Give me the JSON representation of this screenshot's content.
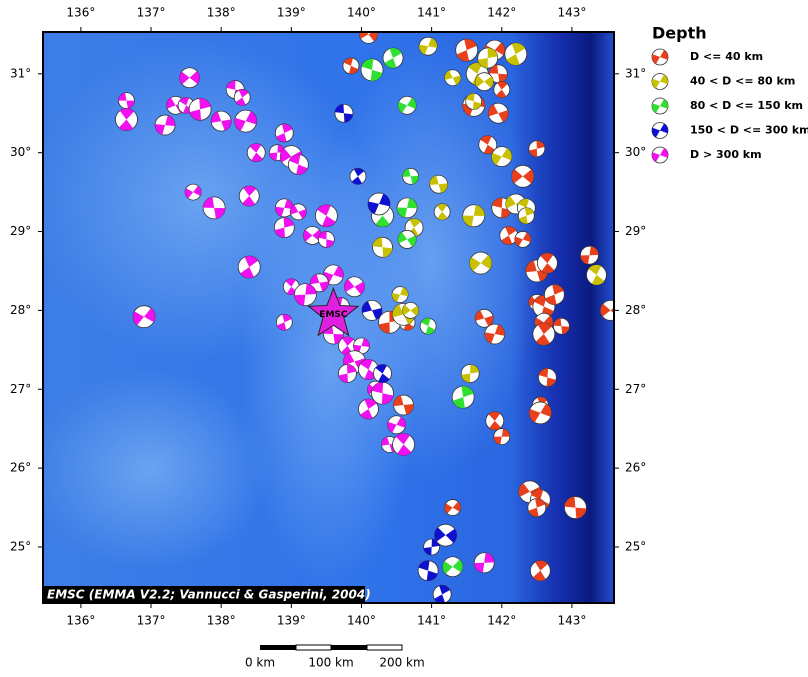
{
  "map": {
    "lonlim": [
      135.46,
      143.6
    ],
    "latlim": [
      24.29,
      31.53
    ],
    "lonticks": [
      {
        "value": 136,
        "label": "136°"
      },
      {
        "value": 137,
        "label": "137°"
      },
      {
        "value": 138,
        "label": "138°"
      },
      {
        "value": 139,
        "label": "139°"
      },
      {
        "value": 140,
        "label": "140°"
      },
      {
        "value": 141,
        "label": "141°"
      },
      {
        "value": 142,
        "label": "142°"
      },
      {
        "value": 143,
        "label": "143°"
      }
    ],
    "latticks": [
      {
        "value": 25,
        "label": "25°"
      },
      {
        "value": 26,
        "label": "26°"
      },
      {
        "value": 27,
        "label": "27°"
      },
      {
        "value": 28,
        "label": "28°"
      },
      {
        "value": 29,
        "label": "29°"
      },
      {
        "value": 30,
        "label": "30°"
      },
      {
        "value": 31,
        "label": "31°"
      }
    ],
    "credit": "EMSC (EMMA V2.2; Vannucci & Gasperini, 2004)",
    "epicenter": {
      "label": "EMSC",
      "lon": 139.6,
      "lat": 27.95
    },
    "scale": [
      "0 km",
      "100 km",
      "200 km"
    ],
    "legend": {
      "title": "Depth",
      "entries": [
        {
          "label": "D <= 40 km",
          "color": "#e8401c"
        },
        {
          "label": "40 < D <= 80 km",
          "color": "#c8c000"
        },
        {
          "label": "80 < D <= 150 km",
          "color": "#30e030"
        },
        {
          "label": "150 < D <= 300 km",
          "color": "#1010d0"
        },
        {
          "label": "D > 300 km",
          "color": "#f010f0"
        }
      ]
    },
    "events": [
      [
        136.65,
        30.66,
        4
      ],
      [
        136.65,
        30.42,
        4
      ],
      [
        137.2,
        30.35,
        4
      ],
      [
        137.35,
        30.6,
        4
      ],
      [
        137.5,
        30.6,
        4
      ],
      [
        137.7,
        30.55,
        4
      ],
      [
        137.55,
        30.95,
        4
      ],
      [
        138.2,
        30.8,
        4
      ],
      [
        138.3,
        30.7,
        4
      ],
      [
        138.35,
        30.4,
        4
      ],
      [
        138.0,
        30.4,
        4
      ],
      [
        138.5,
        30.0,
        4
      ],
      [
        138.8,
        30.0,
        4
      ],
      [
        139.0,
        29.95,
        4
      ],
      [
        139.1,
        29.85,
        4
      ],
      [
        138.9,
        30.25,
        4
      ],
      [
        137.6,
        29.5,
        4
      ],
      [
        137.9,
        29.3,
        4
      ],
      [
        138.4,
        29.45,
        4
      ],
      [
        138.9,
        29.3,
        4
      ],
      [
        139.1,
        29.25,
        4
      ],
      [
        139.5,
        29.2,
        4
      ],
      [
        138.9,
        29.05,
        4
      ],
      [
        139.3,
        28.95,
        4
      ],
      [
        139.5,
        28.9,
        4
      ],
      [
        138.4,
        28.55,
        4
      ],
      [
        139.6,
        28.45,
        4
      ],
      [
        139.4,
        28.35,
        4
      ],
      [
        139.0,
        28.3,
        4
      ],
      [
        139.2,
        28.2,
        4
      ],
      [
        139.9,
        28.3,
        4
      ],
      [
        139.7,
        28.05,
        4
      ],
      [
        138.9,
        27.85,
        4
      ],
      [
        136.9,
        27.92,
        4
      ],
      [
        139.6,
        27.7,
        4
      ],
      [
        139.8,
        27.55,
        4
      ],
      [
        140.0,
        27.55,
        4
      ],
      [
        139.9,
        27.35,
        4
      ],
      [
        140.1,
        27.25,
        4
      ],
      [
        139.8,
        27.2,
        4
      ],
      [
        140.2,
        27.0,
        4
      ],
      [
        140.3,
        26.95,
        4
      ],
      [
        140.1,
        26.75,
        4
      ],
      [
        140.5,
        26.55,
        4
      ],
      [
        140.4,
        26.3,
        4
      ],
      [
        140.6,
        26.3,
        4
      ],
      [
        141.75,
        24.8,
        4
      ],
      [
        140.1,
        31.5,
        0
      ],
      [
        139.85,
        31.1,
        0
      ],
      [
        141.5,
        31.3,
        0
      ],
      [
        141.9,
        31.3,
        0
      ],
      [
        141.95,
        31.0,
        0
      ],
      [
        142.0,
        30.8,
        0
      ],
      [
        141.6,
        30.6,
        0
      ],
      [
        141.95,
        30.5,
        0
      ],
      [
        141.8,
        30.1,
        0
      ],
      [
        142.5,
        30.05,
        0
      ],
      [
        142.3,
        29.7,
        0
      ],
      [
        142.0,
        29.3,
        0
      ],
      [
        142.1,
        28.95,
        0
      ],
      [
        142.3,
        28.9,
        0
      ],
      [
        142.5,
        28.5,
        0
      ],
      [
        142.65,
        28.6,
        0
      ],
      [
        143.25,
        28.7,
        0
      ],
      [
        142.5,
        28.1,
        0
      ],
      [
        142.6,
        28.05,
        0
      ],
      [
        142.75,
        28.2,
        0
      ],
      [
        142.6,
        27.85,
        0
      ],
      [
        142.85,
        27.8,
        0
      ],
      [
        142.6,
        27.7,
        0
      ],
      [
        141.9,
        27.7,
        0
      ],
      [
        141.75,
        27.9,
        0
      ],
      [
        140.65,
        27.85,
        0
      ],
      [
        140.4,
        27.85,
        0
      ],
      [
        143.55,
        28.0,
        0
      ],
      [
        142.65,
        27.15,
        0
      ],
      [
        142.55,
        26.8,
        0
      ],
      [
        142.55,
        26.7,
        0
      ],
      [
        140.6,
        26.8,
        0
      ],
      [
        141.9,
        26.6,
        0
      ],
      [
        142.0,
        26.4,
        0
      ],
      [
        142.4,
        25.7,
        0
      ],
      [
        142.55,
        25.6,
        0
      ],
      [
        142.5,
        25.5,
        0
      ],
      [
        141.3,
        25.5,
        0
      ],
      [
        143.05,
        25.5,
        0
      ],
      [
        142.55,
        24.7,
        0
      ],
      [
        140.95,
        31.35,
        1
      ],
      [
        141.3,
        30.95,
        1
      ],
      [
        141.65,
        31.0,
        1
      ],
      [
        141.8,
        31.2,
        1
      ],
      [
        141.75,
        30.9,
        1
      ],
      [
        141.6,
        30.65,
        1
      ],
      [
        142.2,
        31.25,
        1
      ],
      [
        142.0,
        29.95,
        1
      ],
      [
        141.1,
        29.6,
        1
      ],
      [
        141.15,
        29.25,
        1
      ],
      [
        141.6,
        29.2,
        1
      ],
      [
        142.2,
        29.35,
        1
      ],
      [
        142.35,
        29.3,
        1
      ],
      [
        142.35,
        29.2,
        1
      ],
      [
        141.7,
        28.6,
        1
      ],
      [
        140.3,
        28.8,
        1
      ],
      [
        140.75,
        29.05,
        1
      ],
      [
        140.55,
        28.2,
        1
      ],
      [
        140.6,
        27.95,
        1
      ],
      [
        143.35,
        28.45,
        1
      ],
      [
        141.55,
        27.2,
        1
      ],
      [
        140.7,
        28.0,
        1
      ],
      [
        140.15,
        31.05,
        2
      ],
      [
        140.45,
        31.2,
        2
      ],
      [
        140.65,
        30.6,
        2
      ],
      [
        140.7,
        29.7,
        2
      ],
      [
        140.3,
        29.2,
        2
      ],
      [
        140.65,
        29.3,
        2
      ],
      [
        140.65,
        28.9,
        2
      ],
      [
        140.95,
        27.8,
        2
      ],
      [
        141.45,
        26.9,
        2
      ],
      [
        141.3,
        24.75,
        2
      ],
      [
        139.75,
        30.5,
        3
      ],
      [
        139.95,
        29.7,
        3
      ],
      [
        140.25,
        29.35,
        3
      ],
      [
        140.15,
        28.0,
        3
      ],
      [
        140.3,
        27.2,
        3
      ],
      [
        141.0,
        25.0,
        3
      ],
      [
        141.2,
        25.15,
        3
      ],
      [
        140.95,
        24.7,
        3
      ],
      [
        141.15,
        24.4,
        3
      ]
    ]
  }
}
